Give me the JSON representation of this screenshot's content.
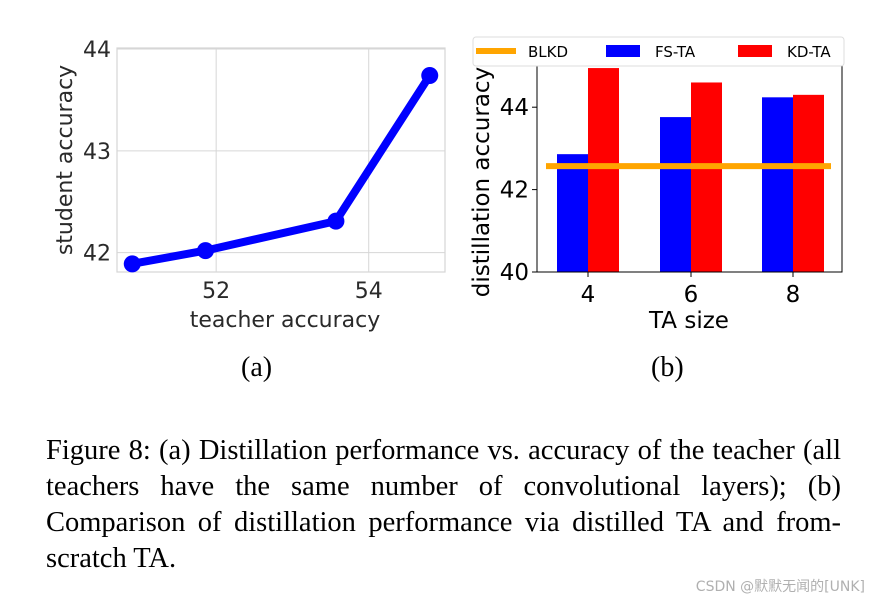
{
  "chart_data": [
    {
      "type": "line",
      "panel_label": "(a)",
      "xlabel": "teacher accuracy",
      "ylabel": "student accuracy",
      "xlim": [
        50.7,
        55.0
      ],
      "ylim": [
        41.81,
        44.01
      ],
      "xticks": [
        52,
        54
      ],
      "yticks": [
        42,
        43,
        44
      ],
      "grid": true,
      "color": "#0000ff",
      "x": [
        50.9,
        51.86,
        53.57,
        54.8
      ],
      "y": [
        41.89,
        42.02,
        42.31,
        43.74
      ]
    },
    {
      "type": "bar",
      "panel_label": "(b)",
      "xlabel": "TA size",
      "ylabel": "distillation accuracy",
      "categories": [
        "4",
        "6",
        "8"
      ],
      "ylim": [
        40,
        45
      ],
      "yticks": [
        40,
        42,
        44
      ],
      "grid": false,
      "legend": "top",
      "series": [
        {
          "name": "FS-TA",
          "color": "#0000ff",
          "values": [
            42.86,
            43.76,
            44.24
          ]
        },
        {
          "name": "KD-TA",
          "color": "#ff0000",
          "values": [
            44.95,
            44.6,
            44.3
          ]
        }
      ],
      "baseline": {
        "name": "BLKD",
        "color": "#ffa500",
        "value": 42.57
      }
    }
  ],
  "caption": "Figure 8:  (a) Distillation performance vs. accuracy of the teacher (all teachers have the same number of convolutional layers); (b) Comparison of distillation performance via distilled TA and from-scratch TA.",
  "watermark": "CSDN @默默无闻的[UNK]"
}
